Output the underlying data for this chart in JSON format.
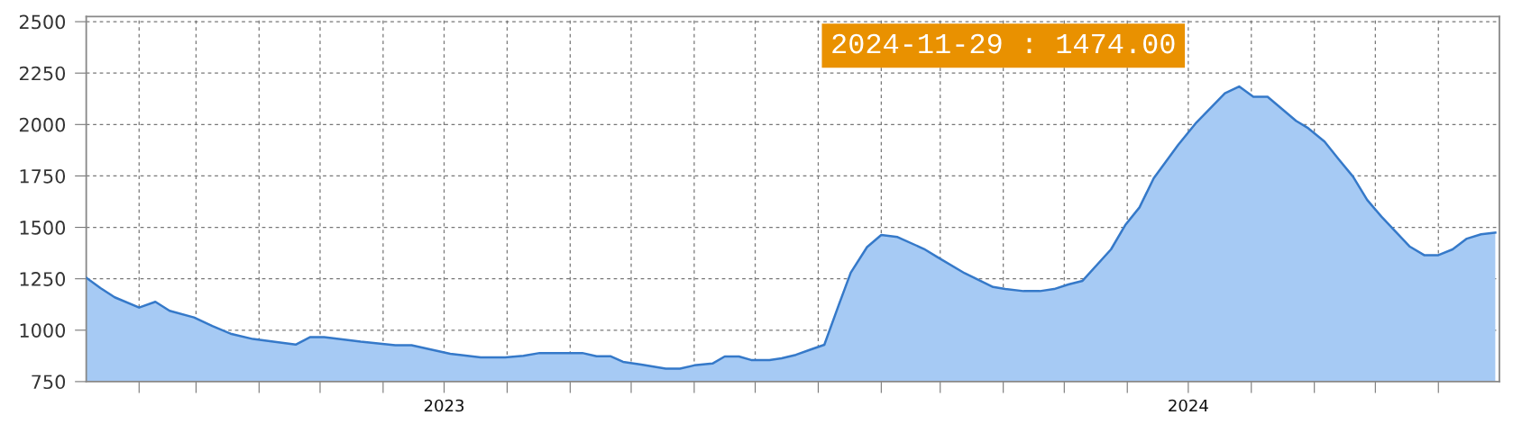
{
  "chart_data": {
    "type": "area",
    "color": "#a6caf4",
    "x": [
      "2023-01-06",
      "2023-01-13",
      "2023-01-20",
      "2023-02-01",
      "2023-02-09",
      "2023-02-16",
      "2023-02-28",
      "2023-03-09",
      "2023-03-18",
      "2023-03-29",
      "2023-04-08",
      "2023-04-19",
      "2023-04-26",
      "2023-05-03",
      "2023-05-21",
      "2023-06-07",
      "2023-06-15",
      "2023-07-04",
      "2023-07-19",
      "2023-07-31",
      "2023-08-09",
      "2023-08-17",
      "2023-09-07",
      "2023-09-14",
      "2023-09-21",
      "2023-09-27",
      "2023-10-06",
      "2023-10-18",
      "2023-10-25",
      "2023-11-01",
      "2023-11-10",
      "2023-11-16",
      "2023-11-23",
      "2023-11-29",
      "2023-12-08",
      "2023-12-14",
      "2023-12-21",
      "2023-12-28",
      "2024-01-04",
      "2024-01-11",
      "2024-01-17",
      "2024-01-25",
      "2024-02-01",
      "2024-02-09",
      "2024-02-22",
      "2024-02-29",
      "2024-03-13",
      "2024-03-27",
      "2024-04-02",
      "2024-04-11",
      "2024-04-19",
      "2024-04-26",
      "2024-05-03",
      "2024-05-10",
      "2024-05-24",
      "2024-05-31",
      "2024-06-07",
      "2024-06-14",
      "2024-06-26",
      "2024-07-05",
      "2024-07-19",
      "2024-07-26",
      "2024-08-02",
      "2024-08-09",
      "2024-08-23",
      "2024-08-29",
      "2024-09-06",
      "2024-09-13",
      "2024-09-20",
      "2024-09-27",
      "2024-10-04",
      "2024-10-11",
      "2024-10-18",
      "2024-10-25",
      "2024-11-01",
      "2024-11-08",
      "2024-11-15",
      "2024-11-22",
      "2024-11-29"
    ],
    "values": [
      1255,
      1205,
      1160,
      1110,
      1138,
      1094,
      1062,
      1020,
      983,
      957,
      944,
      930,
      966,
      966,
      944,
      927,
      927,
      885,
      868,
      868,
      875,
      889,
      889,
      873,
      873,
      846,
      833,
      813,
      813,
      829,
      838,
      872,
      872,
      855,
      855,
      863,
      880,
      905,
      929,
      1120,
      1280,
      1404,
      1463,
      1453,
      1395,
      1353,
      1277,
      1210,
      1200,
      1190,
      1190,
      1200,
      1222,
      1240,
      1393,
      1511,
      1597,
      1739,
      1901,
      2010,
      2152,
      2185,
      2135,
      2135,
      2018,
      1982,
      1917,
      1831,
      1747,
      1633,
      1552,
      1479,
      1406,
      1365,
      1365,
      1393,
      1445,
      1466,
      1474
    ],
    "xlim": [
      "2023-01-06",
      "2024-12-01"
    ],
    "xticks": [
      {
        "value": "2023-02-01",
        "label": null
      },
      {
        "value": "2023-03-01",
        "label": null
      },
      {
        "value": "2023-04-01",
        "label": null
      },
      {
        "value": "2023-05-01",
        "label": null
      },
      {
        "value": "2023-06-01",
        "label": null
      },
      {
        "value": "2023-07-01",
        "label": "2023"
      },
      {
        "value": "2023-08-01",
        "label": null
      },
      {
        "value": "2023-09-01",
        "label": null
      },
      {
        "value": "2023-10-01",
        "label": null
      },
      {
        "value": "2023-11-01",
        "label": null
      },
      {
        "value": "2023-12-01",
        "label": null
      },
      {
        "value": "2024-01-01",
        "label": null
      },
      {
        "value": "2024-02-01",
        "label": null
      },
      {
        "value": "2024-03-01",
        "label": null
      },
      {
        "value": "2024-04-01",
        "label": null
      },
      {
        "value": "2024-05-01",
        "label": null
      },
      {
        "value": "2024-06-01",
        "label": null
      },
      {
        "value": "2024-07-01",
        "label": "2024"
      },
      {
        "value": "2024-08-01",
        "label": null
      },
      {
        "value": "2024-09-01",
        "label": null
      },
      {
        "value": "2024-10-01",
        "label": null
      },
      {
        "value": "2024-11-01",
        "label": null
      }
    ],
    "ylim": [
      750,
      2525
    ],
    "yticks": [
      750,
      1000,
      1250,
      1500,
      1750,
      2000,
      2250,
      2500
    ],
    "grid": true,
    "annotations": [
      "2024-11-29 : 1474.00"
    ]
  }
}
